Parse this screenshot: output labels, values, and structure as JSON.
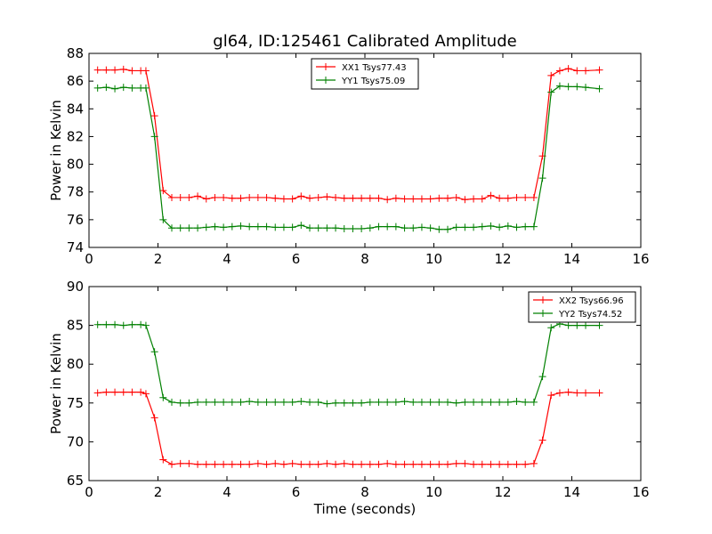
{
  "title": "gl64, ID:125461 Calibrated Amplitude",
  "chart_data": [
    {
      "type": "line",
      "ylabel": "Power in Kelvin",
      "xlabel": "",
      "xlim": [
        0,
        16
      ],
      "ylim": [
        74,
        88
      ],
      "xticks": [
        0,
        2,
        4,
        6,
        8,
        10,
        12,
        14,
        16
      ],
      "yticks": [
        74,
        76,
        78,
        80,
        82,
        84,
        86,
        88
      ],
      "grid": false,
      "legend": "top-center",
      "series": [
        {
          "name": "XX1 Tsys77.43",
          "color": "#ff0000",
          "marker": "plus",
          "x": [
            0.25,
            0.5,
            0.75,
            1.0,
            1.25,
            1.5,
            1.65,
            1.9,
            2.15,
            2.4,
            2.65,
            2.9,
            3.15,
            3.4,
            3.65,
            3.9,
            4.15,
            4.4,
            4.65,
            4.9,
            5.15,
            5.4,
            5.65,
            5.9,
            6.15,
            6.4,
            6.65,
            6.9,
            7.15,
            7.4,
            7.65,
            7.9,
            8.15,
            8.4,
            8.65,
            8.9,
            9.15,
            9.4,
            9.65,
            9.9,
            10.15,
            10.4,
            10.65,
            10.9,
            11.15,
            11.4,
            11.65,
            11.9,
            12.15,
            12.4,
            12.65,
            12.9,
            13.15,
            13.4,
            13.65,
            13.9,
            14.15,
            14.4,
            14.8
          ],
          "values": [
            86.8,
            86.8,
            86.8,
            86.85,
            86.75,
            86.75,
            86.75,
            83.5,
            78.1,
            77.6,
            77.6,
            77.6,
            77.7,
            77.5,
            77.6,
            77.6,
            77.55,
            77.55,
            77.6,
            77.6,
            77.6,
            77.55,
            77.5,
            77.5,
            77.7,
            77.55,
            77.6,
            77.65,
            77.6,
            77.55,
            77.55,
            77.55,
            77.55,
            77.55,
            77.45,
            77.55,
            77.5,
            77.5,
            77.5,
            77.5,
            77.55,
            77.55,
            77.6,
            77.45,
            77.5,
            77.5,
            77.75,
            77.55,
            77.55,
            77.6,
            77.6,
            77.6,
            80.6,
            86.4,
            86.75,
            86.9,
            86.75,
            86.75,
            86.8
          ]
        },
        {
          "name": "YY1 Tsys75.09",
          "color": "#008000",
          "marker": "plus",
          "x": [
            0.25,
            0.5,
            0.75,
            1.0,
            1.25,
            1.5,
            1.65,
            1.9,
            2.15,
            2.4,
            2.65,
            2.9,
            3.15,
            3.4,
            3.65,
            3.9,
            4.15,
            4.4,
            4.65,
            4.9,
            5.15,
            5.4,
            5.65,
            5.9,
            6.15,
            6.4,
            6.65,
            6.9,
            7.15,
            7.4,
            7.65,
            7.9,
            8.15,
            8.4,
            8.65,
            8.9,
            9.15,
            9.4,
            9.65,
            9.9,
            10.15,
            10.4,
            10.65,
            10.9,
            11.15,
            11.4,
            11.65,
            11.9,
            12.15,
            12.4,
            12.65,
            12.9,
            13.15,
            13.4,
            13.65,
            13.9,
            14.15,
            14.4,
            14.8
          ],
          "values": [
            85.5,
            85.55,
            85.45,
            85.55,
            85.5,
            85.5,
            85.5,
            82.0,
            76.0,
            75.4,
            75.4,
            75.4,
            75.4,
            75.45,
            75.5,
            75.45,
            75.5,
            75.55,
            75.5,
            75.5,
            75.5,
            75.45,
            75.45,
            75.45,
            75.6,
            75.4,
            75.4,
            75.4,
            75.4,
            75.35,
            75.35,
            75.35,
            75.4,
            75.5,
            75.5,
            75.5,
            75.4,
            75.4,
            75.45,
            75.4,
            75.3,
            75.3,
            75.45,
            75.45,
            75.45,
            75.5,
            75.55,
            75.45,
            75.55,
            75.45,
            75.5,
            75.5,
            79.0,
            85.2,
            85.65,
            85.6,
            85.6,
            85.55,
            85.45
          ]
        }
      ]
    },
    {
      "type": "line",
      "ylabel": "Power in Kelvin",
      "xlabel": "Time (seconds)",
      "xlim": [
        0,
        16
      ],
      "ylim": [
        65,
        90
      ],
      "xticks": [
        0,
        2,
        4,
        6,
        8,
        10,
        12,
        14,
        16
      ],
      "yticks": [
        65,
        70,
        75,
        80,
        85,
        90
      ],
      "grid": false,
      "legend": "top-right",
      "series": [
        {
          "name": "XX2 Tsys66.96",
          "color": "#ff0000",
          "marker": "plus",
          "x": [
            0.25,
            0.5,
            0.75,
            1.0,
            1.25,
            1.5,
            1.65,
            1.9,
            2.15,
            2.4,
            2.65,
            2.9,
            3.15,
            3.4,
            3.65,
            3.9,
            4.15,
            4.4,
            4.65,
            4.9,
            5.15,
            5.4,
            5.65,
            5.9,
            6.15,
            6.4,
            6.65,
            6.9,
            7.15,
            7.4,
            7.65,
            7.9,
            8.15,
            8.4,
            8.65,
            8.9,
            9.15,
            9.4,
            9.65,
            9.9,
            10.15,
            10.4,
            10.65,
            10.9,
            11.15,
            11.4,
            11.65,
            11.9,
            12.15,
            12.4,
            12.65,
            12.9,
            13.15,
            13.4,
            13.65,
            13.9,
            14.15,
            14.4,
            14.8
          ],
          "values": [
            76.3,
            76.4,
            76.4,
            76.4,
            76.4,
            76.4,
            76.2,
            73.1,
            67.7,
            67.1,
            67.2,
            67.2,
            67.1,
            67.1,
            67.1,
            67.1,
            67.1,
            67.1,
            67.1,
            67.2,
            67.1,
            67.2,
            67.1,
            67.2,
            67.1,
            67.1,
            67.1,
            67.2,
            67.1,
            67.2,
            67.1,
            67.1,
            67.1,
            67.1,
            67.2,
            67.1,
            67.1,
            67.1,
            67.1,
            67.1,
            67.1,
            67.1,
            67.2,
            67.2,
            67.1,
            67.1,
            67.1,
            67.1,
            67.1,
            67.1,
            67.1,
            67.2,
            70.2,
            76.0,
            76.3,
            76.4,
            76.3,
            76.3,
            76.3
          ]
        },
        {
          "name": "YY2 Tsys74.52",
          "color": "#008000",
          "marker": "plus",
          "x": [
            0.25,
            0.5,
            0.75,
            1.0,
            1.25,
            1.5,
            1.65,
            1.9,
            2.15,
            2.4,
            2.65,
            2.9,
            3.15,
            3.4,
            3.65,
            3.9,
            4.15,
            4.4,
            4.65,
            4.9,
            5.15,
            5.4,
            5.65,
            5.9,
            6.15,
            6.4,
            6.65,
            6.9,
            7.15,
            7.4,
            7.65,
            7.9,
            8.15,
            8.4,
            8.65,
            8.9,
            9.15,
            9.4,
            9.65,
            9.9,
            10.15,
            10.4,
            10.65,
            10.9,
            11.15,
            11.4,
            11.65,
            11.9,
            12.15,
            12.4,
            12.65,
            12.9,
            13.15,
            13.4,
            13.65,
            13.9,
            14.15,
            14.4,
            14.8
          ],
          "values": [
            85.1,
            85.1,
            85.1,
            85.0,
            85.1,
            85.1,
            85.0,
            81.6,
            75.7,
            75.1,
            75.0,
            75.0,
            75.1,
            75.1,
            75.1,
            75.1,
            75.1,
            75.1,
            75.2,
            75.1,
            75.1,
            75.1,
            75.1,
            75.1,
            75.2,
            75.1,
            75.1,
            74.9,
            75.0,
            75.0,
            75.0,
            75.0,
            75.1,
            75.1,
            75.1,
            75.1,
            75.2,
            75.1,
            75.1,
            75.1,
            75.1,
            75.1,
            75.0,
            75.1,
            75.1,
            75.1,
            75.1,
            75.1,
            75.1,
            75.2,
            75.1,
            75.1,
            78.4,
            84.7,
            85.2,
            85.0,
            85.0,
            85.0,
            85.0
          ]
        }
      ]
    }
  ]
}
